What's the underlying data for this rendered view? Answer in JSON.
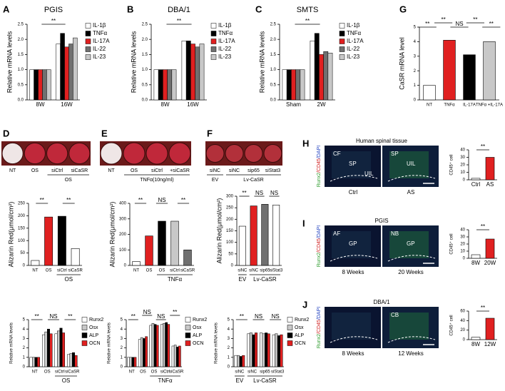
{
  "chart_data": [
    {
      "type": "bar",
      "panel": "A",
      "title": "PGIS",
      "y_label": "Relative mRNA levels",
      "categories": [
        "8W",
        "16W"
      ],
      "series": [
        {
          "name": "IL-1β",
          "color": "#ffffff",
          "values": [
            1,
            1.85
          ]
        },
        {
          "name": "TNFα",
          "color": "#000000",
          "values": [
            1,
            2.2
          ]
        },
        {
          "name": "IL-17A",
          "color": "#e02020",
          "values": [
            1,
            1.75
          ]
        },
        {
          "name": "IL-22",
          "color": "#707070",
          "values": [
            1,
            1.85
          ]
        },
        {
          "name": "IL-23",
          "color": "#c8c8c8",
          "values": [
            1,
            2.05
          ]
        }
      ],
      "ylim": [
        0,
        2.5
      ],
      "yticks": [
        {
          "value": 0,
          "label": "0.0"
        },
        {
          "value": 0.5,
          "label": "0.5"
        },
        {
          "value": 1,
          "label": "1.0"
        },
        {
          "value": 1.5,
          "label": "1.5"
        },
        {
          "value": 2,
          "label": "2.0"
        },
        {
          "value": 2.5,
          "label": "2.5"
        }
      ],
      "annotations": [
        "**"
      ],
      "legend": true
    },
    {
      "type": "bar",
      "panel": "B",
      "title": "DBA/1",
      "y_label": "Relative mRNA levels",
      "categories": [
        "8W",
        "16W"
      ],
      "series": [
        {
          "name": "IL-1β",
          "color": "#ffffff",
          "values": [
            1,
            1.95
          ]
        },
        {
          "name": "TNFα",
          "color": "#000000",
          "values": [
            1,
            1.95
          ]
        },
        {
          "name": "IL-17A",
          "color": "#e02020",
          "values": [
            1,
            1.85
          ]
        },
        {
          "name": "IL-22",
          "color": "#707070",
          "values": [
            1,
            1.75
          ]
        },
        {
          "name": "IL-23",
          "color": "#c8c8c8",
          "values": [
            1,
            1.85
          ]
        }
      ],
      "ylim": [
        0,
        2.5
      ],
      "yticks": [
        {
          "value": 0,
          "label": "0.0"
        },
        {
          "value": 0.5,
          "label": "0.5"
        },
        {
          "value": 1,
          "label": "1.0"
        },
        {
          "value": 1.5,
          "label": "1.5"
        },
        {
          "value": 2,
          "label": "2.0"
        },
        {
          "value": 2.5,
          "label": "2.5"
        }
      ],
      "annotations": [
        "**"
      ],
      "legend": true
    },
    {
      "type": "bar",
      "panel": "C",
      "title": "SMTS",
      "y_label": "Relative mRNA levels",
      "categories": [
        "Sham",
        "2W"
      ],
      "series": [
        {
          "name": "IL-1β",
          "color": "#ffffff",
          "values": [
            1,
            1.95
          ]
        },
        {
          "name": "TNFα",
          "color": "#000000",
          "values": [
            1,
            2.2
          ]
        },
        {
          "name": "IL-17A",
          "color": "#e02020",
          "values": [
            1,
            1.5
          ]
        },
        {
          "name": "IL-22",
          "color": "#707070",
          "values": [
            1,
            1.6
          ]
        },
        {
          "name": "IL-23",
          "color": "#c8c8c8",
          "values": [
            1,
            1.55
          ]
        }
      ],
      "ylim": [
        0,
        2.5
      ],
      "yticks": [
        {
          "value": 0,
          "label": "0.0"
        },
        {
          "value": 0.5,
          "label": "0.5"
        },
        {
          "value": 1,
          "label": "1.0"
        },
        {
          "value": 1.5,
          "label": "1.5"
        },
        {
          "value": 2,
          "label": "2.0"
        },
        {
          "value": 2.5,
          "label": "2.5"
        }
      ],
      "annotations": [
        "**"
      ],
      "legend": true
    },
    {
      "type": "bar",
      "panel": "G",
      "y_label": "CaSR mRNA level",
      "categories": [
        "NT",
        "TNFα",
        "IL-17A",
        "TNFα +IL-17A"
      ],
      "values": [
        1,
        4.1,
        3.1,
        4.0
      ],
      "colors": [
        "#ffffff",
        "#e02020",
        "#000000",
        "#c8c8c8"
      ],
      "ylim": [
        0,
        5
      ],
      "yticks": [
        0,
        1,
        2,
        3,
        4,
        5
      ],
      "annotations": [
        "**",
        "**",
        "NS",
        "**",
        "**"
      ]
    },
    {
      "type": "bar",
      "y_label": "Alizarin Red(μmol/cm²)",
      "categories": [
        "NT",
        "OS",
        "siCtrl",
        "siCaSR"
      ],
      "values": [
        20,
        195,
        198,
        68
      ],
      "colors": [
        "#ffffff",
        "#e02020",
        "#000000",
        "#ffffff"
      ],
      "ylim": [
        0,
        250
      ],
      "yticks": [
        0,
        50,
        100,
        150,
        200,
        250
      ],
      "annotations": [
        "**",
        "**"
      ],
      "x_groups": [
        "OS"
      ]
    },
    {
      "type": "bar",
      "y_label": "Alizarin Red(μmol/cm²)",
      "categories": [
        "NT",
        "OS",
        "OS",
        "siCtrl",
        "siCaSR"
      ],
      "values": [
        25,
        190,
        285,
        285,
        100
      ],
      "colors": [
        "#ffffff",
        "#e02020",
        "#000000",
        "#c8c8c8",
        "#707070"
      ],
      "ylim": [
        0,
        400
      ],
      "yticks": [
        0,
        100,
        200,
        300,
        400
      ],
      "annotations": [
        "**",
        "NS",
        "**"
      ],
      "x_groups": [
        "TNFα"
      ]
    },
    {
      "type": "bar",
      "y_label": "Alizarin Red(μmol/cm²)",
      "categories": [
        "siNC",
        "siNC",
        "sip65",
        "siStat3"
      ],
      "values": [
        170,
        258,
        265,
        262
      ],
      "colors": [
        "#ffffff",
        "#e02020",
        "#707070",
        "#ffffff"
      ],
      "ylim": [
        0,
        300
      ],
      "yticks": [
        0,
        50,
        100,
        150,
        200,
        250,
        300
      ],
      "annotations": [
        "**",
        "NS",
        "NS"
      ],
      "x_groups": [
        "EV",
        "Lv-CaSR"
      ]
    },
    {
      "type": "bar",
      "y_label": "Relative mRNA levels",
      "categories": [
        "NT",
        "OS",
        "siCtrl",
        "siCaSR"
      ],
      "series": [
        {
          "name": "Runx2",
          "color": "#ffffff",
          "values": [
            1,
            3.4,
            3.5,
            1.3
          ]
        },
        {
          "name": "Osx",
          "color": "#c8c8c8",
          "values": [
            1,
            3.7,
            3.8,
            1.4
          ]
        },
        {
          "name": "ALP",
          "color": "#000000",
          "values": [
            1,
            4,
            4.1,
            1.5
          ]
        },
        {
          "name": "OCN",
          "color": "#e02020",
          "values": [
            1,
            3.5,
            3.6,
            1.2
          ]
        }
      ],
      "ylim": [
        0,
        5
      ],
      "yticks": [
        0,
        1,
        2,
        3,
        4,
        5
      ],
      "annotations": [
        "**",
        "NS",
        "**"
      ],
      "x_groups": [
        "OS"
      ],
      "legend": true
    },
    {
      "type": "bar",
      "y_label": "Relative mRNA levels",
      "categories": [
        "NT",
        "OS",
        "OS",
        "siCtrl",
        "siCaSR"
      ],
      "series": [
        {
          "name": "Runx2",
          "color": "#ffffff",
          "values": [
            1,
            2.9,
            4.4,
            4.5,
            2.2
          ]
        },
        {
          "name": "Osx",
          "color": "#c8c8c8",
          "values": [
            1,
            3.1,
            4.6,
            4.6,
            2.3
          ]
        },
        {
          "name": "ALP",
          "color": "#000000",
          "values": [
            1,
            3.0,
            4.5,
            4.7,
            2.1
          ]
        },
        {
          "name": "OCN",
          "color": "#e02020",
          "values": [
            1,
            3.2,
            4.4,
            4.5,
            2.2
          ]
        }
      ],
      "ylim": [
        0,
        5
      ],
      "yticks": [
        0,
        1,
        2,
        3,
        4,
        5
      ],
      "annotations": [
        "**",
        "NS",
        "NS",
        "**"
      ],
      "x_groups": [
        "TNFα"
      ],
      "legend": true
    },
    {
      "type": "bar",
      "y_label": "Relative mRNA levels",
      "categories": [
        "siNC",
        "siNC",
        "sip65",
        "siStat3"
      ],
      "series": [
        {
          "name": "Runx2",
          "color": "#ffffff",
          "values": [
            1.2,
            3.5,
            3.6,
            3.4
          ]
        },
        {
          "name": "Osx",
          "color": "#c8c8c8",
          "values": [
            1.2,
            3.6,
            3.5,
            3.5
          ]
        },
        {
          "name": "ALP",
          "color": "#000000",
          "values": [
            1.1,
            3.4,
            3.6,
            3.3
          ]
        },
        {
          "name": "OCN",
          "color": "#e02020",
          "values": [
            1.2,
            3.6,
            3.5,
            3.4
          ]
        }
      ],
      "ylim": [
        0,
        5
      ],
      "yticks": [
        0,
        1,
        2,
        3,
        4,
        5
      ],
      "annotations": [
        "**",
        "NS",
        "NS"
      ],
      "x_groups": [
        "EV",
        "Lv-CaSR"
      ],
      "legend": true
    },
    {
      "type": "bar",
      "y_label": "CD45⁺ cell",
      "categories": [
        "Ctrl",
        "AS"
      ],
      "values": [
        2,
        30
      ],
      "colors": [
        "#ffffff",
        "#e02020"
      ],
      "ylim": [
        0,
        40
      ],
      "yticks": [
        0,
        10,
        20,
        30,
        40
      ],
      "annotations": [
        "**"
      ]
    },
    {
      "type": "bar",
      "y_label": "CD45⁺ cell",
      "categories": [
        "8W",
        "20W"
      ],
      "values": [
        5,
        27
      ],
      "colors": [
        "#ffffff",
        "#e02020"
      ],
      "ylim": [
        0,
        40
      ],
      "yticks": [
        0,
        10,
        20,
        30,
        40
      ],
      "annotations": [
        "**"
      ]
    },
    {
      "type": "bar",
      "y_label": "CD45⁺ cell",
      "categories": [
        "8W",
        "12W"
      ],
      "values": [
        5,
        45
      ],
      "colors": [
        "#ffffff",
        "#e02020"
      ],
      "ylim": [
        0,
        60
      ],
      "yticks": [
        0,
        20,
        40,
        60
      ],
      "annotations": [
        "**"
      ]
    }
  ],
  "photos": [
    {
      "panel": "D",
      "wells": [
        "NT",
        "OS",
        "siCtrl",
        "siCaSR"
      ],
      "group": "OS"
    },
    {
      "panel": "E",
      "wells": [
        "NT",
        "OS",
        "siCtrl",
        "+siCaSR"
      ],
      "group": "TNFα(10ng/ml)"
    },
    {
      "panel": "F",
      "wells": [
        "siNC",
        "siNC",
        "sip65",
        "siStat3"
      ],
      "groups": [
        "EV",
        "Lv-CaSR"
      ]
    }
  ],
  "micrographs": [
    {
      "panel": "H",
      "title": "Human spinal tissue",
      "stain": [
        "Runx2",
        "/CD45",
        "/DAPI"
      ],
      "left_regions": [
        "CF",
        "SP",
        "UIL"
      ],
      "right_regions": [
        "SP",
        "UIL"
      ],
      "conditions": [
        "Ctrl",
        "AS"
      ]
    },
    {
      "panel": "I",
      "title": "PGIS",
      "stain": [
        "Runx2",
        "/CD45",
        "/DAPI"
      ],
      "left_regions": [
        "AF",
        "GP"
      ],
      "right_regions": [
        "NB",
        "GP"
      ],
      "conditions": [
        "8 Weeks",
        "20 Weeks"
      ]
    },
    {
      "panel": "J",
      "title": "DBA/1",
      "stain": [
        "Runx2",
        "/CD45",
        "/DAPI"
      ],
      "right_regions": [
        "CB"
      ],
      "conditions": [
        "8 Weeks",
        "12 Weeks"
      ]
    }
  ]
}
